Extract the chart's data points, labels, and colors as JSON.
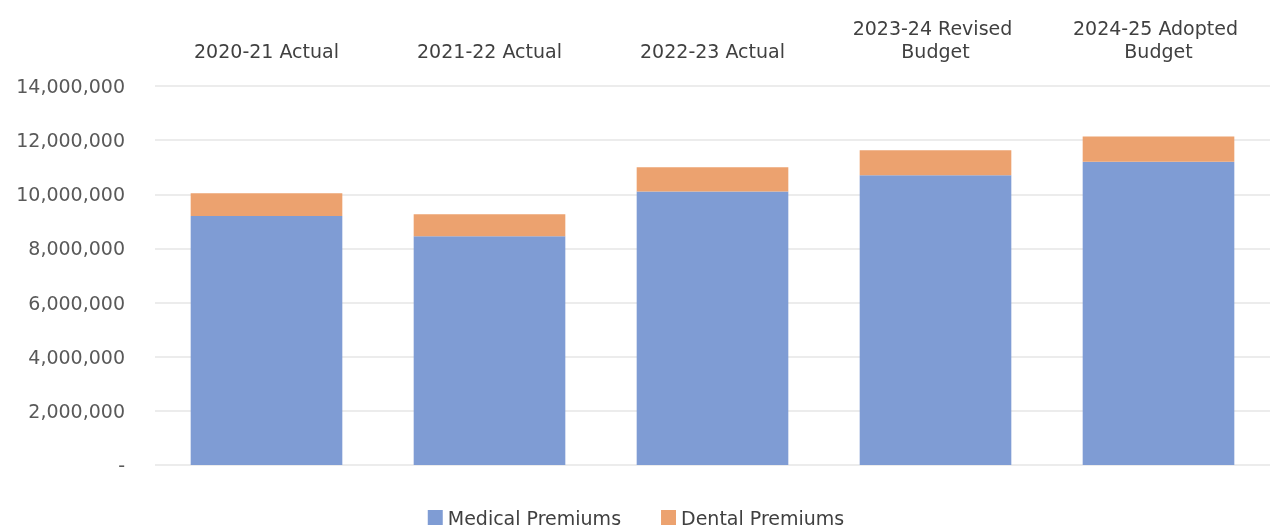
{
  "chart_data": {
    "type": "bar",
    "stacked": true,
    "categories": [
      "2020-21 Actual",
      "2021-22 Actual",
      "2022-23 Actual",
      "2023-24 Revised Budget",
      "2024-25 Adopted Budget"
    ],
    "series": [
      {
        "name": "Medical Premiums",
        "color": "#7f9cd4",
        "values": [
          9200000,
          8450000,
          10100000,
          10700000,
          11200000
        ]
      },
      {
        "name": "Dental Premiums",
        "color": "#eca26f",
        "values": [
          840000,
          810000,
          900000,
          930000,
          930000
        ]
      }
    ],
    "ylim": [
      0,
      14000000
    ],
    "yticks": [
      {
        "value": 0,
        "label": "-"
      },
      {
        "value": 2000000,
        "label": "2,000,000"
      },
      {
        "value": 4000000,
        "label": "4,000,000"
      },
      {
        "value": 6000000,
        "label": "6,000,000"
      },
      {
        "value": 8000000,
        "label": "8,000,000"
      },
      {
        "value": 10000000,
        "label": "10,000,000"
      },
      {
        "value": 12000000,
        "label": "12,000,000"
      },
      {
        "value": 14000000,
        "label": "14,000,000"
      }
    ],
    "grid": "y",
    "legend": "bottom"
  }
}
